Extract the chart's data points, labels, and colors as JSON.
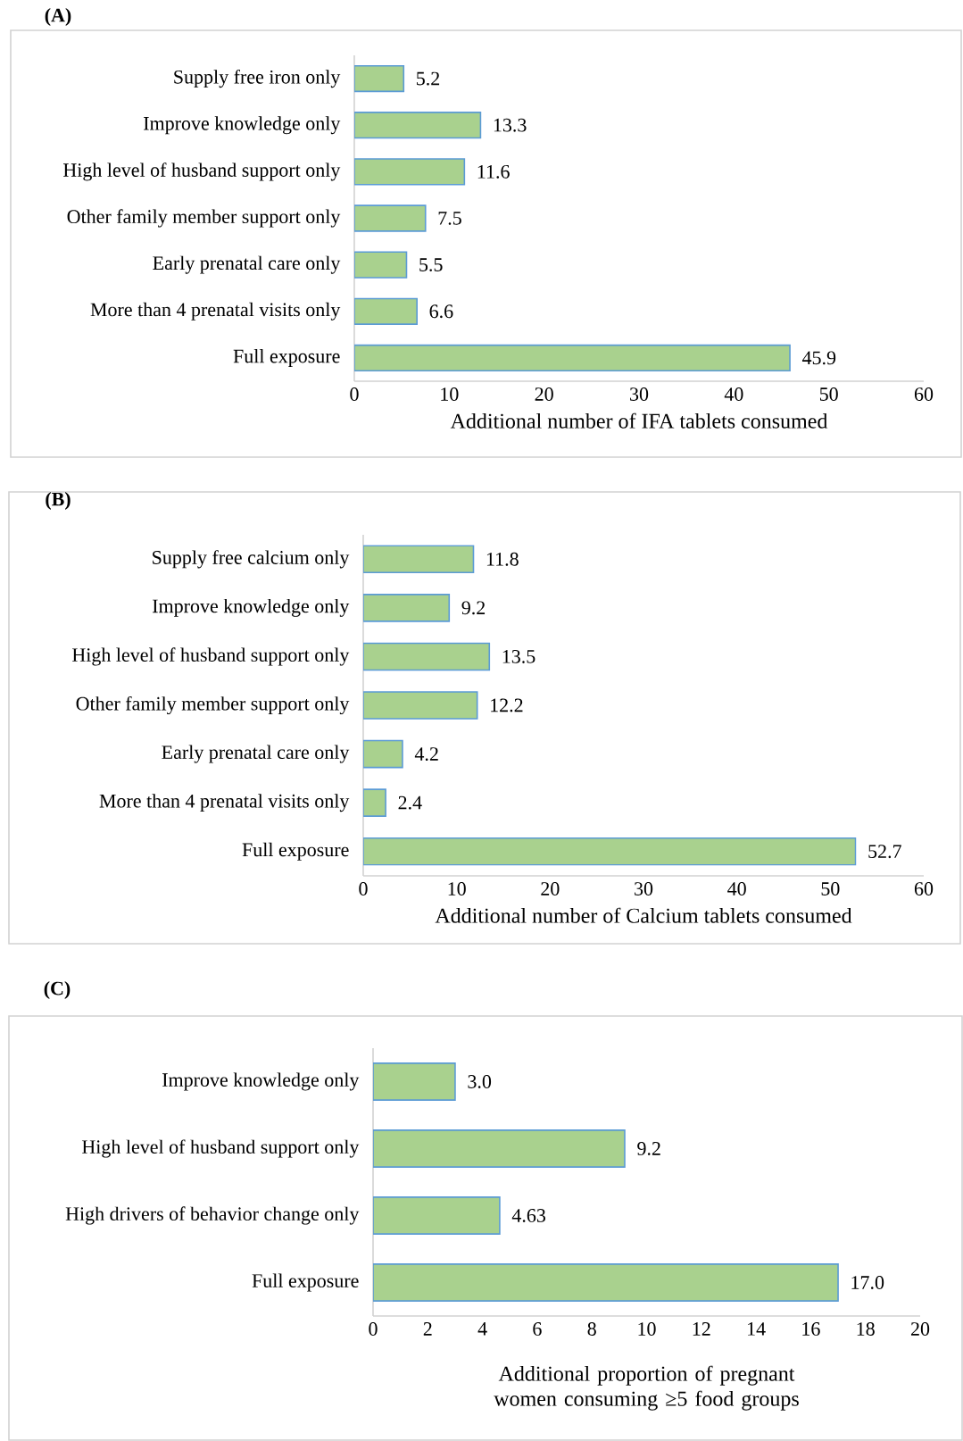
{
  "chart_data": [
    {
      "type": "bar",
      "orientation": "horizontal",
      "title": "(A)",
      "xlabel": "Additional number of IFA tablets consumed",
      "categories": [
        "Supply free iron only",
        "Improve knowledge only",
        "High level of husband  support only",
        "Other family member support only",
        "Early prenatal care only",
        "More than 4 prenatal visits only",
        "Full exposure"
      ],
      "values": [
        5.2,
        13.3,
        11.6,
        7.5,
        5.5,
        6.6,
        45.9
      ],
      "color": "#a9d18e",
      "data_labels": true,
      "xlim": [
        0,
        60
      ],
      "xticks": [
        0,
        10,
        20,
        30,
        40,
        50,
        60
      ]
    },
    {
      "type": "bar",
      "orientation": "horizontal",
      "title": "(B)",
      "xlabel": "Additional number of Calcium tablets consumed",
      "categories": [
        "Supply free calcium only",
        "Improve knowledge only",
        "High level of husband  support only",
        "Other family member support only",
        "Early prenatal care only",
        "More than 4 prenatal visits only",
        "Full exposure"
      ],
      "values": [
        11.8,
        9.2,
        13.5,
        12.2,
        4.2,
        2.4,
        52.7
      ],
      "color": "#a9d18e",
      "data_labels": true,
      "xlim": [
        0,
        60
      ],
      "xticks": [
        0,
        10,
        20,
        30,
        40,
        50,
        60
      ]
    },
    {
      "type": "bar",
      "orientation": "horizontal",
      "title": "(C)",
      "xlabel": "Additional proportion of pregnant women consuming ≥5 food groups",
      "categories": [
        "Improve knowledge only",
        "High level of husband  support only",
        "High drivers of behavior change only",
        "Full exposure"
      ],
      "values": [
        3.0,
        9.2,
        4.63,
        17.0
      ],
      "value_labels": [
        "3.0",
        "9.2",
        "4.63",
        "17.0"
      ],
      "color": "#a9d18e",
      "xlim": [
        0,
        20
      ],
      "xticks": [
        0,
        2,
        4,
        6,
        8,
        10,
        12,
        14,
        16,
        18,
        20
      ]
    }
  ]
}
